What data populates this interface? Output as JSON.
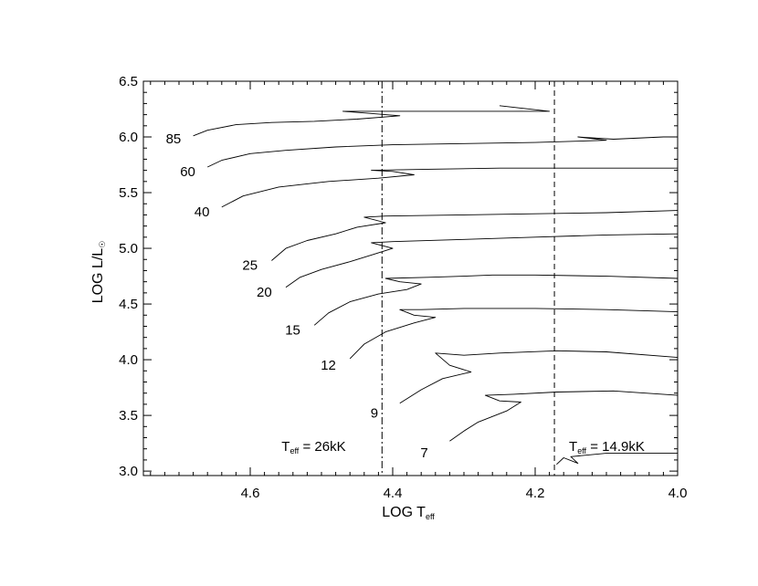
{
  "chart_data": {
    "type": "line",
    "xlabel": "LOG T",
    "xlabel_sub": "eff",
    "ylabel": "LOG L/L",
    "ylabel_sub": "☉",
    "xlim": [
      4.75,
      4.0
    ],
    "ylim": [
      2.96,
      6.5
    ],
    "x_reversed": true,
    "xticks": [
      4.6,
      4.4,
      4.2,
      4.0
    ],
    "xtick_labels": [
      "4.6",
      "4.4",
      "4.2",
      "4.0"
    ],
    "yticks": [
      3.0,
      3.5,
      4.0,
      4.5,
      5.0,
      5.5,
      6.0,
      6.5
    ],
    "ytick_labels": [
      "3.0",
      "3.5",
      "4.0",
      "4.5",
      "5.0",
      "5.5",
      "6.0",
      "6.5"
    ],
    "grid": false,
    "reference_lines": [
      {
        "x": 4.415,
        "style": "dash-dot",
        "label": "T",
        "label_sub": "eff",
        "label_suffix": " = 26kK"
      },
      {
        "x": 4.173,
        "style": "dashed",
        "label": "T",
        "label_sub": "eff",
        "label_suffix": " = 14.9kK"
      }
    ],
    "series": [
      {
        "name": "85",
        "points": [
          [
            4.68,
            6.01
          ],
          [
            4.66,
            6.06
          ],
          [
            4.62,
            6.11
          ],
          [
            4.57,
            6.13
          ],
          [
            4.51,
            6.14
          ],
          [
            4.45,
            6.16
          ],
          [
            4.39,
            6.19
          ],
          [
            4.47,
            6.23
          ],
          [
            4.42,
            6.23
          ],
          [
            4.3,
            6.23
          ],
          [
            4.18,
            6.23
          ],
          [
            4.25,
            6.28
          ]
        ]
      },
      {
        "name": "60",
        "points": [
          [
            4.66,
            5.73
          ],
          [
            4.64,
            5.79
          ],
          [
            4.6,
            5.85
          ],
          [
            4.55,
            5.88
          ],
          [
            4.48,
            5.91
          ],
          [
            4.4,
            5.93
          ],
          [
            4.3,
            5.94
          ],
          [
            4.2,
            5.95
          ],
          [
            4.1,
            5.97
          ],
          [
            4.14,
            6.0
          ],
          [
            4.09,
            5.98
          ],
          [
            4.02,
            6.0
          ],
          [
            4.0,
            6.0
          ]
        ]
      },
      {
        "name": "40",
        "points": [
          [
            4.64,
            5.37
          ],
          [
            4.61,
            5.47
          ],
          [
            4.56,
            5.55
          ],
          [
            4.49,
            5.6
          ],
          [
            4.42,
            5.63
          ],
          [
            4.37,
            5.66
          ],
          [
            4.4,
            5.69
          ],
          [
            4.43,
            5.7
          ],
          [
            4.35,
            5.71
          ],
          [
            4.25,
            5.72
          ],
          [
            4.15,
            5.72
          ],
          [
            4.05,
            5.72
          ],
          [
            4.0,
            5.72
          ]
        ]
      },
      {
        "name": "25",
        "points": [
          [
            4.57,
            4.89
          ],
          [
            4.55,
            5.0
          ],
          [
            4.52,
            5.07
          ],
          [
            4.48,
            5.13
          ],
          [
            4.45,
            5.19
          ],
          [
            4.41,
            5.23
          ],
          [
            4.44,
            5.28
          ],
          [
            4.41,
            5.29
          ],
          [
            4.3,
            5.3
          ],
          [
            4.2,
            5.31
          ],
          [
            4.1,
            5.32
          ],
          [
            4.0,
            5.34
          ]
        ]
      },
      {
        "name": "20",
        "points": [
          [
            4.55,
            4.65
          ],
          [
            4.53,
            4.74
          ],
          [
            4.5,
            4.81
          ],
          [
            4.46,
            4.88
          ],
          [
            4.43,
            4.94
          ],
          [
            4.4,
            5.0
          ],
          [
            4.43,
            5.05
          ],
          [
            4.4,
            5.06
          ],
          [
            4.3,
            5.08
          ],
          [
            4.2,
            5.1
          ],
          [
            4.1,
            5.12
          ],
          [
            4.0,
            5.13
          ]
        ]
      },
      {
        "name": "15",
        "points": [
          [
            4.51,
            4.31
          ],
          [
            4.49,
            4.42
          ],
          [
            4.46,
            4.52
          ],
          [
            4.42,
            4.59
          ],
          [
            4.38,
            4.63
          ],
          [
            4.36,
            4.68
          ],
          [
            4.39,
            4.7
          ],
          [
            4.41,
            4.73
          ],
          [
            4.35,
            4.74
          ],
          [
            4.3,
            4.75
          ],
          [
            4.26,
            4.76
          ],
          [
            4.2,
            4.76
          ],
          [
            4.1,
            4.75
          ],
          [
            4.0,
            4.73
          ]
        ]
      },
      {
        "name": "12",
        "points": [
          [
            4.46,
            4.01
          ],
          [
            4.44,
            4.14
          ],
          [
            4.41,
            4.25
          ],
          [
            4.37,
            4.33
          ],
          [
            4.34,
            4.38
          ],
          [
            4.37,
            4.4
          ],
          [
            4.39,
            4.45
          ],
          [
            4.36,
            4.45
          ],
          [
            4.3,
            4.46
          ],
          [
            4.2,
            4.46
          ],
          [
            4.1,
            4.45
          ],
          [
            4.0,
            4.43
          ]
        ]
      },
      {
        "name": "9",
        "points": [
          [
            4.39,
            3.61
          ],
          [
            4.36,
            3.73
          ],
          [
            4.33,
            3.83
          ],
          [
            4.29,
            3.89
          ],
          [
            4.32,
            3.95
          ],
          [
            4.34,
            4.06
          ],
          [
            4.3,
            4.04
          ],
          [
            4.25,
            4.06
          ],
          [
            4.17,
            4.08
          ],
          [
            4.1,
            4.07
          ],
          [
            4.0,
            4.02
          ]
        ]
      },
      {
        "name": "7",
        "points": [
          [
            4.32,
            3.27
          ],
          [
            4.3,
            3.36
          ],
          [
            4.28,
            3.44
          ],
          [
            4.24,
            3.54
          ],
          [
            4.22,
            3.62
          ],
          [
            4.25,
            3.63
          ],
          [
            4.27,
            3.68
          ],
          [
            4.23,
            3.69
          ],
          [
            4.17,
            3.71
          ],
          [
            4.09,
            3.72
          ],
          [
            4.0,
            3.68
          ]
        ]
      },
      {
        "name": "",
        "points": [
          [
            4.17,
            3.06
          ],
          [
            4.16,
            3.12
          ],
          [
            4.14,
            3.07
          ],
          [
            4.15,
            3.13
          ],
          [
            4.1,
            3.16
          ],
          [
            4.0,
            3.16
          ]
        ]
      }
    ]
  }
}
